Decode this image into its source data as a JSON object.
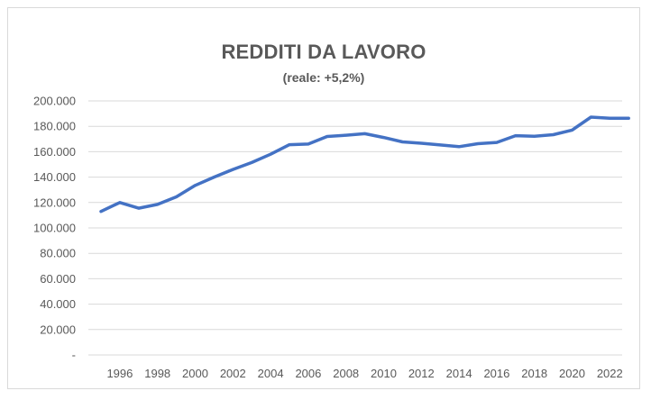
{
  "chart_data": {
    "type": "line",
    "title": "REDDITI DA LAVORO",
    "subtitle": "(reale: +5,2%)",
    "xlabel": "",
    "ylabel": "",
    "ylim": [
      0,
      200000
    ],
    "y_ticks": [
      0,
      20000,
      40000,
      60000,
      80000,
      100000,
      120000,
      140000,
      160000,
      180000,
      200000
    ],
    "y_tick_labels": [
      "-",
      "20.000",
      "40.000",
      "60.000",
      "80.000",
      "100.000",
      "120.000",
      "140.000",
      "160.000",
      "180.000",
      "200.000"
    ],
    "x_tick_labels": [
      "1996",
      "1998",
      "2000",
      "2002",
      "2004",
      "2006",
      "2008",
      "2010",
      "2012",
      "2014",
      "2016",
      "2018",
      "2020",
      "2022"
    ],
    "grid": true,
    "series_color": "#4472c4",
    "grid_color": "#d9d9d9",
    "series": [
      {
        "name": "",
        "x": [
          1995,
          1996,
          1997,
          1998,
          1999,
          2000,
          2001,
          2002,
          2003,
          2004,
          2005,
          2006,
          2007,
          2008,
          2009,
          2010,
          2011,
          2012,
          2013,
          2014,
          2015,
          2016,
          2017,
          2018,
          2019,
          2020,
          2021,
          2022,
          2023
        ],
        "values": [
          113000,
          120000,
          115500,
          118500,
          124500,
          133500,
          140000,
          146000,
          151500,
          158000,
          165500,
          166000,
          172000,
          173000,
          174200,
          171200,
          167700,
          166700,
          165300,
          164000,
          166300,
          167300,
          172600,
          172100,
          173400,
          177000,
          187200,
          186400,
          186400
        ]
      }
    ]
  }
}
